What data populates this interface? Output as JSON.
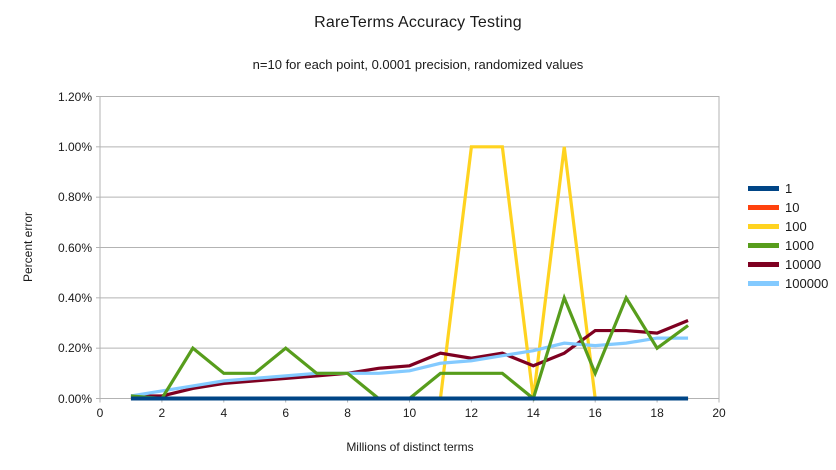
{
  "chart_data": {
    "type": "line",
    "title": "RareTerms Accuracy Testing",
    "subtitle": "n=10 for each point, 0.0001 precision, randomized values",
    "xlabel": "Millions of distinct terms",
    "ylabel": "Percent error",
    "xlim": [
      0,
      20
    ],
    "ylim_percent": [
      0,
      1.2
    ],
    "xticks": [
      0,
      2,
      4,
      6,
      8,
      10,
      12,
      14,
      16,
      18,
      20
    ],
    "ytick_labels": [
      "0.00%",
      "0.20%",
      "0.40%",
      "0.60%",
      "0.80%",
      "1.00%",
      "1.20%"
    ],
    "grid": "horizontal",
    "grid_color": "#b3b3b3",
    "axis_color": "#b3b3b3",
    "text_color": "#1a1a1a",
    "legend_position": "right",
    "x": [
      1,
      2,
      3,
      4,
      5,
      6,
      7,
      8,
      9,
      10,
      11,
      12,
      13,
      14,
      15,
      16,
      17,
      18,
      19
    ],
    "series": [
      {
        "name": "1",
        "color": "#004586",
        "values": [
          0,
          0,
          0,
          0,
          0,
          0,
          0,
          0,
          0,
          0,
          0,
          0,
          0,
          0,
          0,
          0,
          0,
          0,
          0
        ]
      },
      {
        "name": "10",
        "color": "#ff420e",
        "values": [
          0,
          0,
          0,
          0,
          0,
          0,
          0,
          0,
          0,
          0,
          0,
          0,
          0,
          0,
          0,
          0,
          0,
          0,
          0
        ]
      },
      {
        "name": "100",
        "color": "#ffd320",
        "values": [
          0,
          0,
          0,
          0,
          0,
          0,
          0,
          0,
          0,
          0,
          0,
          1.0,
          1.0,
          0,
          1.0,
          0,
          0,
          0,
          0
        ]
      },
      {
        "name": "1000",
        "color": "#579d1c",
        "values": [
          0.01,
          0,
          0.2,
          0.1,
          0.1,
          0.2,
          0.1,
          0.1,
          0,
          0,
          0.1,
          0.1,
          0.1,
          0,
          0.4,
          0.1,
          0.4,
          0.2,
          0.29
        ]
      },
      {
        "name": "10000",
        "color": "#7e0021",
        "values": [
          0.01,
          0.01,
          0.04,
          0.06,
          0.07,
          0.08,
          0.09,
          0.1,
          0.12,
          0.13,
          0.18,
          0.16,
          0.18,
          0.13,
          0.18,
          0.27,
          0.27,
          0.26,
          0.31
        ]
      },
      {
        "name": "100000",
        "color": "#83caff",
        "values": [
          0.01,
          0.03,
          0.05,
          0.07,
          0.08,
          0.09,
          0.1,
          0.1,
          0.1,
          0.11,
          0.14,
          0.15,
          0.17,
          0.19,
          0.22,
          0.21,
          0.22,
          0.24,
          0.24
        ]
      }
    ],
    "draw_order": [
      "10",
      "100",
      "10000",
      "100000",
      "1000",
      "1"
    ]
  }
}
